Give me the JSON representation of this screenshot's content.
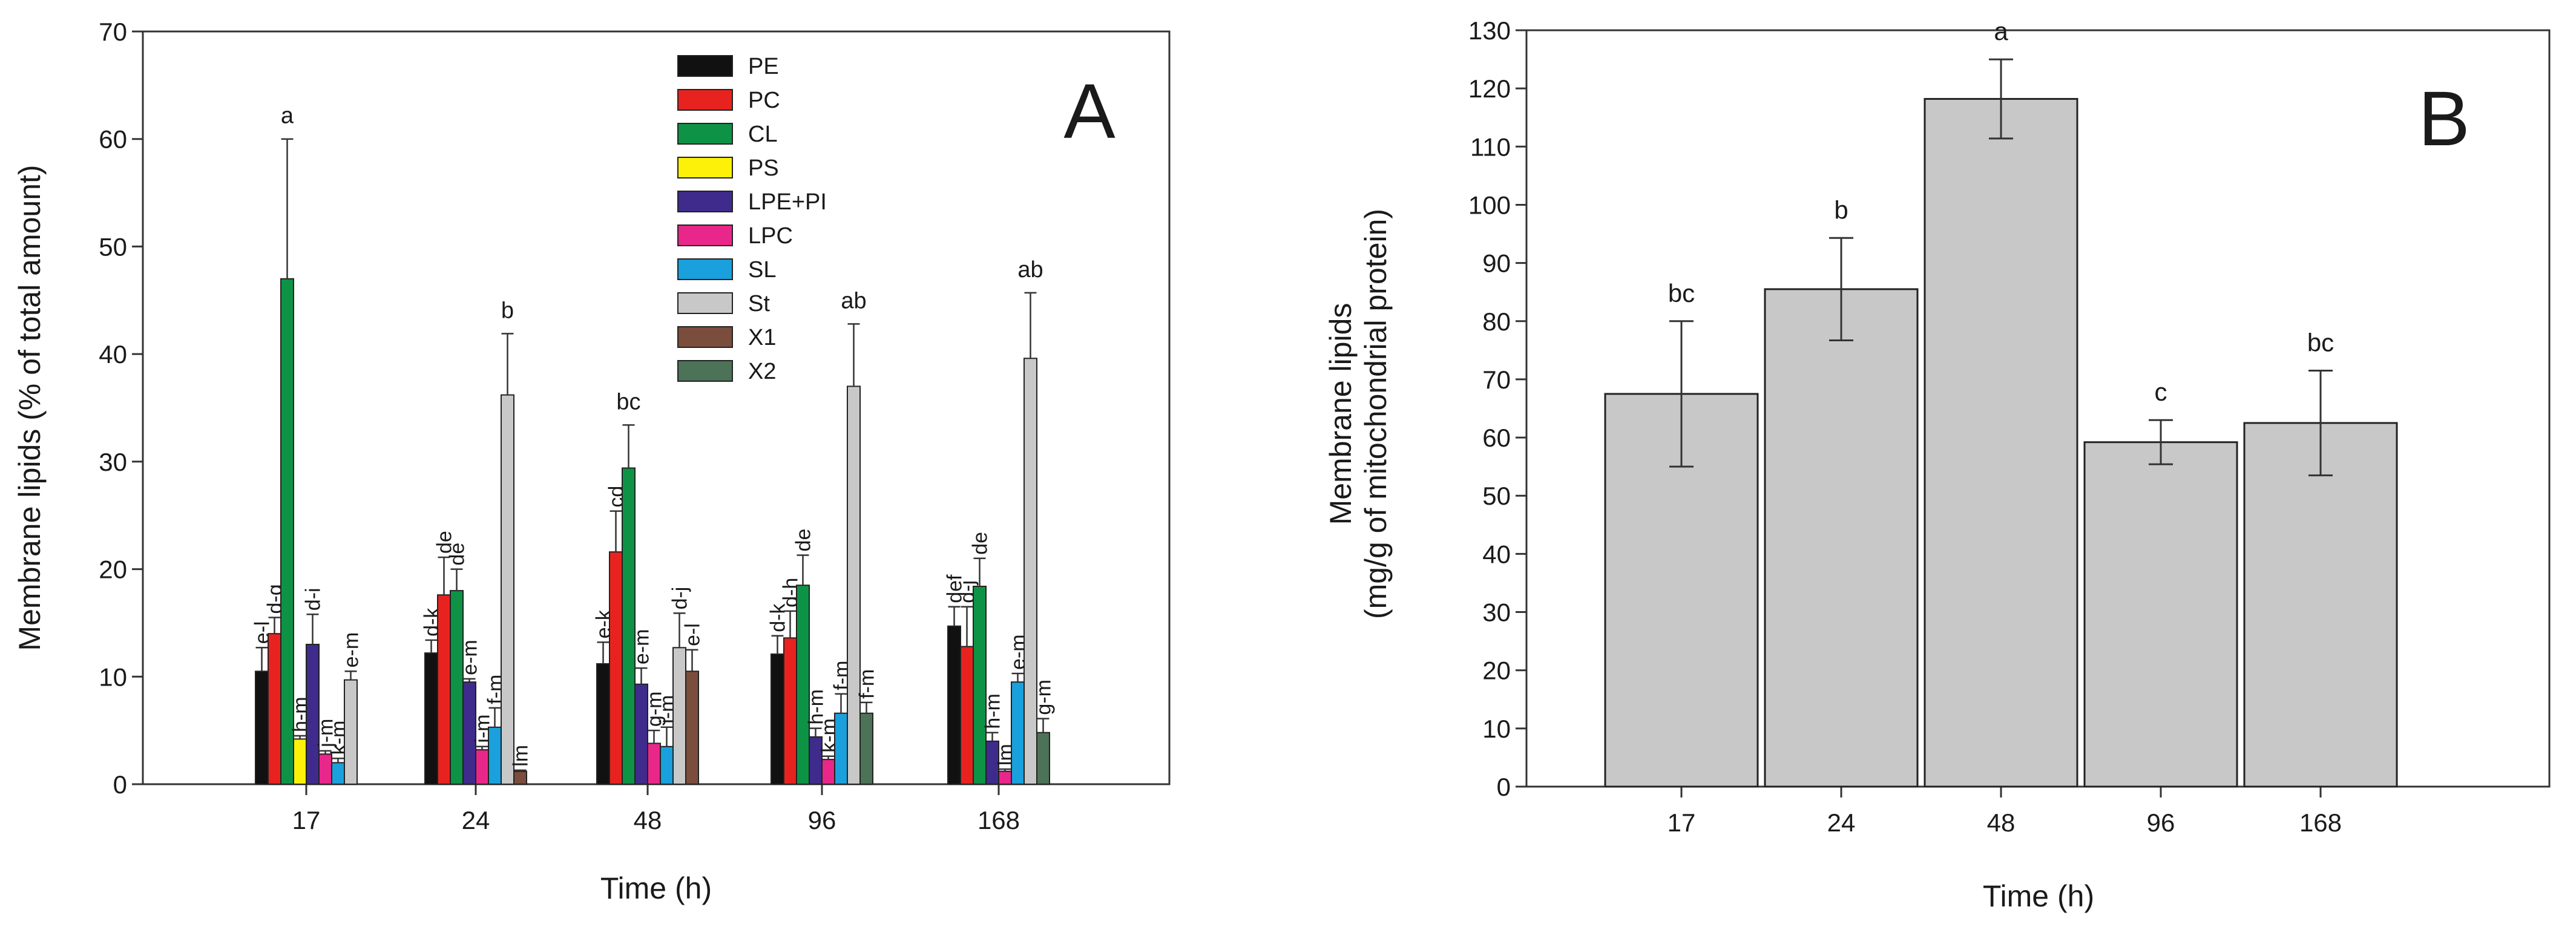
{
  "chart_data": [
    {
      "type": "bar",
      "panel": "A",
      "xlabel": "Time (h)",
      "ylabel": "Membrane lipids (% of total amount)",
      "ylim": [
        0,
        70
      ],
      "yticks": [
        0,
        10,
        20,
        30,
        40,
        50,
        60,
        70
      ],
      "categories": [
        "17",
        "24",
        "48",
        "96",
        "168"
      ],
      "legend_position": "top-center",
      "series": [
        {
          "name": "PE",
          "color": "#111111",
          "values": [
            10.5,
            12.2,
            11.2,
            12.1,
            14.7
          ],
          "errors": [
            2.2,
            1.2,
            2.0,
            1.7,
            1.8
          ],
          "labels": [
            "e-l",
            "d-k",
            "e-k",
            "d-k",
            "def"
          ]
        },
        {
          "name": "PC",
          "color": "#e8231f",
          "values": [
            14.0,
            17.6,
            21.6,
            13.6,
            12.8
          ],
          "errors": [
            1.5,
            3.5,
            3.8,
            2.5,
            3.7
          ],
          "labels": [
            "d-g",
            "de",
            "cd",
            "d-h",
            "d-j"
          ]
        },
        {
          "name": "CL",
          "color": "#0e9346",
          "values": [
            47.0,
            18.0,
            29.4,
            18.5,
            18.4
          ],
          "errors": [
            13.0,
            2.0,
            4.0,
            2.8,
            2.6
          ],
          "labels": [
            "a",
            "de",
            "bc",
            "de",
            "de"
          ]
        },
        {
          "name": "PS",
          "color": "#fdf10a",
          "values": [
            4.2,
            null,
            null,
            null,
            null
          ],
          "errors": [
            0.3,
            null,
            null,
            null,
            null
          ],
          "labels": [
            "h-m",
            "",
            "",
            "",
            ""
          ]
        },
        {
          "name": "LPE+PI",
          "color": "#3f2b8c",
          "values": [
            13.0,
            9.5,
            9.3,
            4.4,
            4.0
          ],
          "errors": [
            2.8,
            0.3,
            1.5,
            0.8,
            0.8
          ],
          "labels": [
            "d-i",
            "e-m",
            "e-m",
            "h-m",
            "h-m"
          ]
        },
        {
          "name": "LPC",
          "color": "#e9278a",
          "values": [
            2.8,
            3.2,
            3.8,
            2.3,
            1.2
          ],
          "errors": [
            0.3,
            0.3,
            1.2,
            0.3,
            0.2
          ],
          "labels": [
            "j-m",
            "j-m",
            "g-m",
            "k-m",
            "lm"
          ]
        },
        {
          "name": "SL",
          "color": "#1aa0dc",
          "values": [
            2.0,
            5.3,
            3.5,
            6.6,
            9.5
          ],
          "errors": [
            0.4,
            1.8,
            1.8,
            1.8,
            0.8
          ],
          "labels": [
            "k-m",
            "f-m",
            "i-m",
            "f-m",
            "e-m"
          ]
        },
        {
          "name": "St",
          "color": "#c8c8c8",
          "values": [
            9.7,
            36.2,
            12.7,
            37.0,
            39.6
          ],
          "errors": [
            0.8,
            5.7,
            3.2,
            5.8,
            6.1
          ],
          "labels": [
            "e-m",
            "b",
            "d-j",
            "ab",
            "ab"
          ]
        },
        {
          "name": "X1",
          "color": "#7b4d3c",
          "values": [
            null,
            1.2,
            10.5,
            null,
            null
          ],
          "errors": [
            null,
            0.1,
            2.0,
            null,
            null
          ],
          "labels": [
            "",
            "lm",
            "e-l",
            "",
            ""
          ]
        },
        {
          "name": "X2",
          "color": "#4c7257",
          "values": [
            null,
            null,
            null,
            6.6,
            4.8
          ],
          "errors": [
            null,
            null,
            null,
            1.0,
            1.3
          ],
          "labels": [
            "",
            "",
            "",
            "f-m",
            "g-m"
          ]
        }
      ]
    },
    {
      "type": "bar",
      "panel": "B",
      "xlabel": "Time (h)",
      "ylabel_line1": "Membrane lipids",
      "ylabel_line2": "(mg/g of mitochondrial protein)",
      "ylim": [
        0,
        130
      ],
      "yticks": [
        0,
        10,
        20,
        30,
        40,
        50,
        60,
        70,
        80,
        90,
        100,
        110,
        120,
        130
      ],
      "categories": [
        "17",
        "24",
        "48",
        "96",
        "168"
      ],
      "bar_color": "#c8c8c8",
      "values": [
        67.5,
        85.5,
        118.2,
        59.2,
        62.5
      ],
      "errors": [
        12.5,
        8.8,
        6.8,
        3.8,
        9.0
      ],
      "labels": [
        "bc",
        "b",
        "a",
        "c",
        "bc"
      ]
    }
  ]
}
